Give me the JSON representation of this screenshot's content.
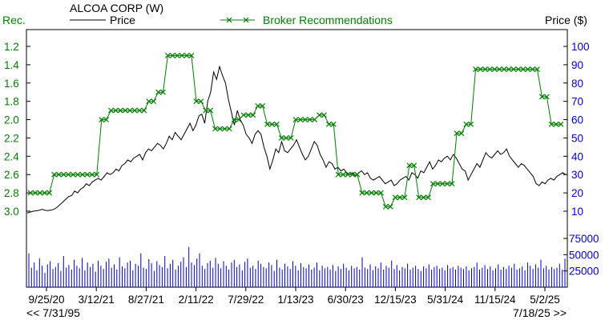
{
  "chart_data": {
    "type": "line",
    "title": "ALCOA CORP (W)",
    "left_axis_label": "Rec.",
    "right_axis_label": "Price ($)",
    "legend": {
      "price": "Price",
      "broker": "Broker Recommendations"
    },
    "nav": {
      "left": "<< 7/31/95",
      "right": "7/18/25 >>"
    },
    "x_ticks": [
      "9/25/20",
      "3/12/21",
      "8/27/21",
      "2/11/22",
      "7/29/22",
      "1/13/23",
      "6/30/23",
      "12/15/23",
      "5/31/24",
      "11/15/24",
      "5/2/25"
    ],
    "rec_axis": {
      "ticks": [
        "1.2",
        "1.4",
        "1.6",
        "1.8",
        "2.0",
        "2.2",
        "2.4",
        "2.6",
        "2.8",
        "3.0"
      ],
      "range": [
        1.2,
        3.0
      ]
    },
    "price_axis": {
      "ticks": [
        "100",
        "90",
        "80",
        "70",
        "60",
        "50",
        "40",
        "30",
        "20",
        "10"
      ],
      "range": [
        10,
        100
      ]
    },
    "volume_axis": {
      "ticks": [
        "75000",
        "50000",
        "25000"
      ],
      "range": [
        0,
        75000
      ]
    },
    "colors": {
      "price": "#000000",
      "broker": "#008000",
      "volume": "#0000cc",
      "axis_left": "#008000",
      "axis_right": "#0000cc",
      "frame": "#000000"
    },
    "price": [
      9,
      9.5,
      10,
      10.2,
      10.5,
      11,
      10.5,
      10.3,
      10.6,
      11,
      12,
      13.5,
      15,
      16.5,
      18,
      18.5,
      21,
      20,
      22,
      23,
      25,
      24,
      26,
      27,
      28,
      27,
      29,
      31,
      30,
      31,
      33,
      32,
      35,
      36,
      38,
      37,
      39,
      40,
      41,
      38,
      42,
      44,
      43,
      45,
      47,
      46,
      44,
      47,
      51,
      49,
      53,
      51,
      49,
      52,
      55,
      58,
      54,
      57,
      62,
      63,
      58,
      70,
      75,
      86,
      82,
      89,
      84,
      80,
      71,
      64,
      57,
      65,
      60,
      57,
      52,
      50,
      47,
      52,
      54,
      52,
      45,
      40,
      33,
      38,
      44,
      42,
      48,
      43,
      42,
      44,
      46,
      49,
      45,
      41,
      38,
      40,
      44,
      48,
      46,
      41,
      38,
      34,
      37,
      36,
      33,
      34,
      32,
      33,
      31,
      30,
      31,
      29,
      31,
      32,
      30,
      31,
      28,
      27,
      28,
      29,
      27,
      25,
      26,
      27,
      24,
      25,
      27,
      28,
      29,
      27,
      31,
      30,
      28,
      32,
      31,
      34,
      37,
      33,
      35,
      38,
      37,
      39,
      40,
      38,
      41,
      39,
      36,
      33,
      32,
      27,
      30,
      33,
      36,
      34,
      38,
      42,
      40,
      39,
      41,
      43,
      41,
      42,
      44,
      40,
      38,
      36,
      34,
      36,
      35,
      33,
      31,
      29,
      25,
      24,
      26,
      25,
      27,
      28,
      27,
      29,
      30,
      31,
      30
    ],
    "broker": [
      2.8,
      2.8,
      2.8,
      2.8,
      2.8,
      2.6,
      2.6,
      2.6,
      2.6,
      2.6,
      2.6,
      2.6,
      2.6,
      2.6,
      2.6,
      2.0,
      2.0,
      1.9,
      1.9,
      1.9,
      1.9,
      1.9,
      1.9,
      1.9,
      1.9,
      1.8,
      1.8,
      1.7,
      1.7,
      1.3,
      1.3,
      1.3,
      1.3,
      1.3,
      1.3,
      1.8,
      1.8,
      1.9,
      1.9,
      2.1,
      2.1,
      2.1,
      2.1,
      2.0,
      2.0,
      1.95,
      1.95,
      1.95,
      1.85,
      1.85,
      2.05,
      2.05,
      2.05,
      2.2,
      2.2,
      2.2,
      2.0,
      2.0,
      2.0,
      2.0,
      2.0,
      1.95,
      1.95,
      2.05,
      2.05,
      2.6,
      2.6,
      2.6,
      2.6,
      2.6,
      2.8,
      2.8,
      2.8,
      2.8,
      2.8,
      2.95,
      2.95,
      2.85,
      2.85,
      2.85,
      2.5,
      2.5,
      2.85,
      2.85,
      2.85,
      2.7,
      2.7,
      2.7,
      2.7,
      2.7,
      2.15,
      2.15,
      2.05,
      2.05,
      1.45,
      1.45,
      1.45,
      1.45,
      1.45,
      1.45,
      1.45,
      1.45,
      1.45,
      1.45,
      1.45,
      1.45,
      1.45,
      1.45,
      1.75,
      1.75,
      2.05,
      2.05,
      2.05
    ],
    "volume": [
      52000,
      30000,
      38000,
      26000,
      44000,
      33000,
      22000,
      35000,
      40000,
      28000,
      31000,
      37000,
      25000,
      48000,
      30000,
      34000,
      27000,
      42000,
      33000,
      29000,
      45000,
      26000,
      38000,
      31000,
      36000,
      24000,
      41000,
      33000,
      28000,
      39000,
      44000,
      30000,
      35000,
      27000,
      46000,
      32000,
      29000,
      38000,
      41000,
      26000,
      36000,
      33000,
      52000,
      30000,
      28000,
      43000,
      37000,
      25000,
      40000,
      34000,
      31000,
      48000,
      29000,
      36000,
      42000,
      27000,
      33000,
      39000,
      46000,
      31000,
      62000,
      38000,
      34000,
      44000,
      52000,
      33000,
      28000,
      37000,
      41000,
      30000,
      45000,
      36000,
      29000,
      40000,
      33000,
      27000,
      38000,
      42000,
      31000,
      35000,
      26000,
      39000,
      44000,
      30000,
      33000,
      28000,
      41000,
      36000,
      31000,
      29000,
      38000,
      34000,
      25000,
      42000,
      30000,
      27000,
      36000,
      32000,
      28000,
      40000,
      33000,
      26000,
      37000,
      31000,
      29000,
      35000,
      27000,
      30000,
      38000,
      26000,
      33000,
      29000,
      31000,
      27000,
      34000,
      25000,
      32000,
      28000,
      36000,
      30000,
      26000,
      33000,
      29000,
      31000,
      27000,
      46000,
      30000,
      28000,
      35000,
      26000,
      32000,
      29000,
      38000,
      27000,
      33000,
      30000,
      41000,
      28000,
      34000,
      26000,
      31000,
      29000,
      36000,
      27000,
      30000,
      33000,
      28000,
      25000,
      32000,
      29000,
      35000,
      27000,
      31000,
      33000,
      28000,
      30000,
      26000,
      34000,
      29000,
      31000,
      27000,
      33000,
      30000,
      28000,
      32000,
      26000,
      29000,
      31000,
      38000,
      27000,
      30000,
      34000,
      28000,
      32000,
      26000,
      29000,
      35000,
      27000,
      31000,
      28000,
      33000,
      30000,
      36000,
      27000,
      29000,
      32000,
      26000,
      38000,
      33000,
      28000,
      35000,
      30000,
      42000,
      29000,
      33000,
      27000,
      31000,
      28000,
      30000,
      36000,
      27000,
      44000
    ]
  }
}
